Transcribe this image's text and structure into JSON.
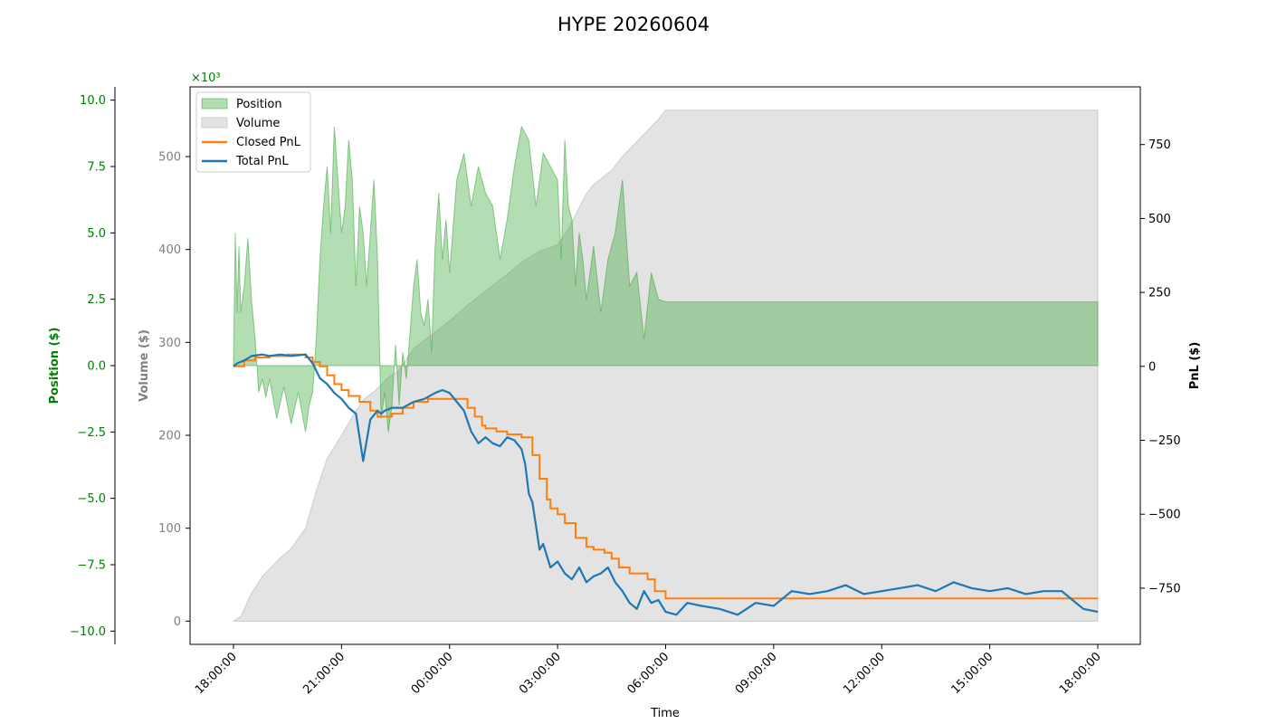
{
  "chart_data": {
    "type": "line",
    "title": "HYPE 20260604",
    "xlabel": "Time",
    "x_ticks": [
      "18:00:00",
      "21:00:00",
      "00:00:00",
      "03:00:00",
      "06:00:00",
      "09:00:00",
      "12:00:00",
      "15:00:00",
      "18:00:00"
    ],
    "volume_axis": {
      "label": "Volume ($)",
      "exponent_label": "×10³",
      "ticks": [
        "0",
        "100",
        "200",
        "300",
        "400",
        "500"
      ],
      "lim": [
        -25,
        575
      ],
      "color": "#808080"
    },
    "position_axis": {
      "label": "Position ($)",
      "ticks": [
        "−10.0",
        "−7.5",
        "−5.0",
        "−2.5",
        "0.0",
        "2.5",
        "5.0",
        "7.5",
        "10.0"
      ],
      "lim": [
        -10.5,
        10.5
      ],
      "color": "#008000"
    },
    "pnl_axis": {
      "label": "PnL ($)",
      "ticks": [
        "−750",
        "−500",
        "−250",
        "0",
        "250",
        "500",
        "750"
      ],
      "lim": [
        -940,
        945
      ],
      "color": "#000000"
    },
    "legend": {
      "position": "upper-left",
      "entries": [
        "Position",
        "Volume",
        "Closed PnL",
        "Total PnL"
      ]
    },
    "series": [
      {
        "name": "Volume",
        "kind": "area",
        "color": "#cccccc",
        "x_hours": [
          0,
          0.2,
          0.5,
          0.8,
          1.0,
          1.3,
          1.6,
          2.0,
          2.3,
          2.6,
          3.0,
          3.3,
          3.6,
          3.9,
          4.1,
          4.3,
          4.6,
          5.0,
          5.5,
          6.0,
          6.5,
          7.0,
          7.5,
          8.0,
          8.5,
          9.0,
          9.3,
          9.6,
          9.8,
          10.0,
          10.5,
          10.8,
          11.0,
          11.3,
          11.6,
          11.8,
          12.0,
          12.3,
          24.0
        ],
        "values": [
          0,
          5,
          30,
          48,
          56,
          68,
          78,
          100,
          140,
          175,
          200,
          220,
          238,
          247,
          254,
          262,
          270,
          293,
          308,
          323,
          340,
          355,
          370,
          386,
          398,
          405,
          422,
          445,
          460,
          470,
          485,
          500,
          508,
          520,
          532,
          540,
          550,
          550,
          550
        ]
      },
      {
        "name": "Position",
        "kind": "area",
        "color": "#2ca02c",
        "x_hours": [
          0,
          0.05,
          0.1,
          0.15,
          0.2,
          0.3,
          0.4,
          0.5,
          0.6,
          0.7,
          0.8,
          0.9,
          1.0,
          1.2,
          1.4,
          1.6,
          1.8,
          2.0,
          2.1,
          2.2,
          2.3,
          2.4,
          2.5,
          2.6,
          2.7,
          2.8,
          2.9,
          3.0,
          3.1,
          3.2,
          3.3,
          3.4,
          3.5,
          3.6,
          3.7,
          3.8,
          3.9,
          4.0,
          4.1,
          4.2,
          4.3,
          4.4,
          4.5,
          4.6,
          4.7,
          4.8,
          4.9,
          5.0,
          5.1,
          5.2,
          5.3,
          5.4,
          5.5,
          5.6,
          5.7,
          5.8,
          5.9,
          6.0,
          6.2,
          6.4,
          6.6,
          6.8,
          7.0,
          7.2,
          7.4,
          7.6,
          7.8,
          8.0,
          8.2,
          8.4,
          8.6,
          8.8,
          9.0,
          9.1,
          9.2,
          9.3,
          9.4,
          9.5,
          9.6,
          9.7,
          9.8,
          10.0,
          10.2,
          10.4,
          10.6,
          10.8,
          11.0,
          11.2,
          11.4,
          11.6,
          11.8,
          12.0,
          24.0
        ],
        "values": [
          0.0,
          5.0,
          2.0,
          4.5,
          2.0,
          3.0,
          4.8,
          2.5,
          1.0,
          -1.0,
          -0.5,
          -1.2,
          -0.5,
          -2.0,
          -0.8,
          -2.2,
          -1.0,
          -2.5,
          -1.5,
          -1.0,
          1.0,
          4.0,
          6.0,
          7.5,
          5.0,
          9.0,
          7.0,
          5.0,
          6.0,
          8.5,
          7.0,
          3.0,
          6.0,
          5.0,
          3.0,
          5.0,
          7.0,
          4.0,
          -2.0,
          -1.0,
          -2.5,
          -1.5,
          0.8,
          -1.5,
          0.5,
          -0.5,
          1.2,
          3.0,
          4.0,
          2.0,
          1.5,
          2.5,
          0.5,
          4.5,
          6.5,
          4.0,
          5.5,
          3.5,
          7.0,
          8.0,
          6.0,
          7.5,
          6.5,
          6.0,
          4.0,
          5.5,
          7.5,
          9.0,
          8.5,
          6.0,
          8.0,
          7.5,
          7.0,
          4.0,
          8.5,
          6.0,
          5.5,
          3.0,
          5.0,
          4.0,
          2.5,
          4.5,
          2.0,
          4.0,
          5.0,
          7.0,
          3.0,
          3.5,
          1.0,
          3.5,
          2.5,
          2.4,
          2.4
        ]
      },
      {
        "name": "Closed PnL",
        "kind": "line",
        "color": "#ff7f0e",
        "x_hours": [
          0,
          0.3,
          0.6,
          1.0,
          1.5,
          2.0,
          2.2,
          2.4,
          2.6,
          2.8,
          3.0,
          3.2,
          3.5,
          3.8,
          4.0,
          4.2,
          4.4,
          4.7,
          5.0,
          5.4,
          5.8,
          6.2,
          6.5,
          6.7,
          6.9,
          7.0,
          7.3,
          7.6,
          7.8,
          8.0,
          8.3,
          8.5,
          8.7,
          8.8,
          9.0,
          9.2,
          9.5,
          9.8,
          10.0,
          10.3,
          10.5,
          10.7,
          11.0,
          11.3,
          11.5,
          11.7,
          12.0,
          24.0
        ],
        "values": [
          0,
          20,
          30,
          35,
          40,
          30,
          15,
          0,
          -30,
          -60,
          -80,
          -100,
          -120,
          -150,
          -170,
          -170,
          -160,
          -140,
          -120,
          -110,
          -110,
          -110,
          -140,
          -170,
          -200,
          -210,
          -220,
          -230,
          -230,
          -240,
          -300,
          -380,
          -450,
          -480,
          -500,
          -530,
          -580,
          -610,
          -620,
          -630,
          -650,
          -680,
          -700,
          -700,
          -720,
          -760,
          -785,
          -785
        ]
      },
      {
        "name": "Total PnL",
        "kind": "line",
        "color": "#1f77b4",
        "x_hours": [
          0,
          0.1,
          0.3,
          0.5,
          0.8,
          1.0,
          1.3,
          1.6,
          2.0,
          2.2,
          2.4,
          2.6,
          2.8,
          3.0,
          3.2,
          3.4,
          3.6,
          3.8,
          4.0,
          4.1,
          4.2,
          4.4,
          4.7,
          5.0,
          5.3,
          5.6,
          5.8,
          6.0,
          6.2,
          6.4,
          6.6,
          6.8,
          7.0,
          7.2,
          7.4,
          7.6,
          7.8,
          8.0,
          8.1,
          8.2,
          8.3,
          8.4,
          8.5,
          8.6,
          8.8,
          9.0,
          9.2,
          9.4,
          9.6,
          9.8,
          10.0,
          10.2,
          10.4,
          10.6,
          10.8,
          11.0,
          11.2,
          11.4,
          11.6,
          11.8,
          12.0,
          12.3,
          12.6,
          13.0,
          13.5,
          14.0,
          14.5,
          15.0,
          15.5,
          16.0,
          16.5,
          17.0,
          17.5,
          18.0,
          18.5,
          19.0,
          19.5,
          20.0,
          20.5,
          21.0,
          21.5,
          22.0,
          22.5,
          23.0,
          23.3,
          23.6,
          24.0
        ],
        "values": [
          0,
          10,
          20,
          35,
          40,
          35,
          40,
          35,
          40,
          10,
          -40,
          -60,
          -90,
          -110,
          -140,
          -160,
          -320,
          -180,
          -150,
          -160,
          -150,
          -140,
          -140,
          -120,
          -110,
          -90,
          -80,
          -90,
          -120,
          -150,
          -220,
          -260,
          -240,
          -260,
          -270,
          -240,
          -250,
          -280,
          -330,
          -430,
          -460,
          -540,
          -620,
          -600,
          -680,
          -660,
          -700,
          -720,
          -680,
          -730,
          -710,
          -700,
          -680,
          -730,
          -760,
          -800,
          -820,
          -760,
          -800,
          -790,
          -830,
          -840,
          -800,
          -810,
          -820,
          -840,
          -800,
          -810,
          -760,
          -770,
          -760,
          -740,
          -770,
          -760,
          -750,
          -740,
          -760,
          -730,
          -750,
          -760,
          -750,
          -770,
          -760,
          -760,
          -790,
          -820,
          -830
        ]
      }
    ]
  }
}
